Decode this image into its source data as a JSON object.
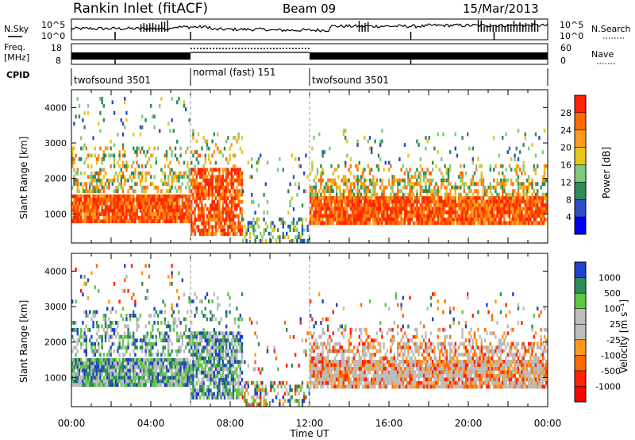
{
  "header": {
    "station": "Rankin Inlet (fitACF)",
    "beam": "Beam 09",
    "date": "15/Mar/2013"
  },
  "noise_panel": {
    "left_label": "N.Sky",
    "right_label": "N.Search",
    "ticks_top": "10^5",
    "ticks_bottom": "10^0"
  },
  "freq_panel": {
    "left_label_1": "Freq.",
    "left_label_2": "[MHz]",
    "left_ticks": [
      "18",
      "8"
    ],
    "right_label": "Nave",
    "right_ticks": [
      "60",
      "0"
    ]
  },
  "cpid": {
    "label": "CPID",
    "segments": [
      {
        "name": "twofsound 3501",
        "start_h": 0,
        "end_h": 6
      },
      {
        "name": "normal (fast) 151",
        "start_h": 6,
        "end_h": 12
      },
      {
        "name": "twofsound 3501",
        "start_h": 12,
        "end_h": 24
      }
    ]
  },
  "chart_data": [
    {
      "type": "heatmap",
      "title": "Power",
      "xlabel": "",
      "ylabel": "Slant Range [km]",
      "xlim": [
        0,
        24
      ],
      "ylim": [
        180,
        4500
      ],
      "yticks": [
        "1000",
        "2000",
        "3000",
        "4000"
      ],
      "colorbar_label": "Power [dB]",
      "colorbar_ticks": [
        "4",
        "8",
        "12",
        "16",
        "20",
        "24",
        "28"
      ],
      "colorbar_colors": [
        "#0000ff",
        "#2a4cc8",
        "#2e8b57",
        "#7fc97f",
        "#e6c619",
        "#ff9a1a",
        "#ff6a00",
        "#ff2200"
      ]
    },
    {
      "type": "heatmap",
      "title": "Velocity",
      "xlabel": "Time UT",
      "ylabel": "Slant Range [km]",
      "xlim": [
        0,
        24
      ],
      "ylim": [
        180,
        4500
      ],
      "yticks": [
        "1000",
        "2000",
        "3000",
        "4000"
      ],
      "xticks": [
        "00:00",
        "04:00",
        "08:00",
        "12:00",
        "16:00",
        "20:00",
        "00:00"
      ],
      "colorbar_label": "Velocity [m s⁻¹]",
      "colorbar_ticks": [
        "1000",
        "500",
        "100",
        "25",
        "-25",
        "-100",
        "-500",
        "-1000"
      ],
      "colorbar_colors": [
        "#2142c8",
        "#2e8b57",
        "#5ec742",
        "#bcbcbc",
        "#bcbcbc",
        "#ff9a1a",
        "#ff6a00",
        "#ff2200",
        "#ff0000"
      ]
    }
  ]
}
